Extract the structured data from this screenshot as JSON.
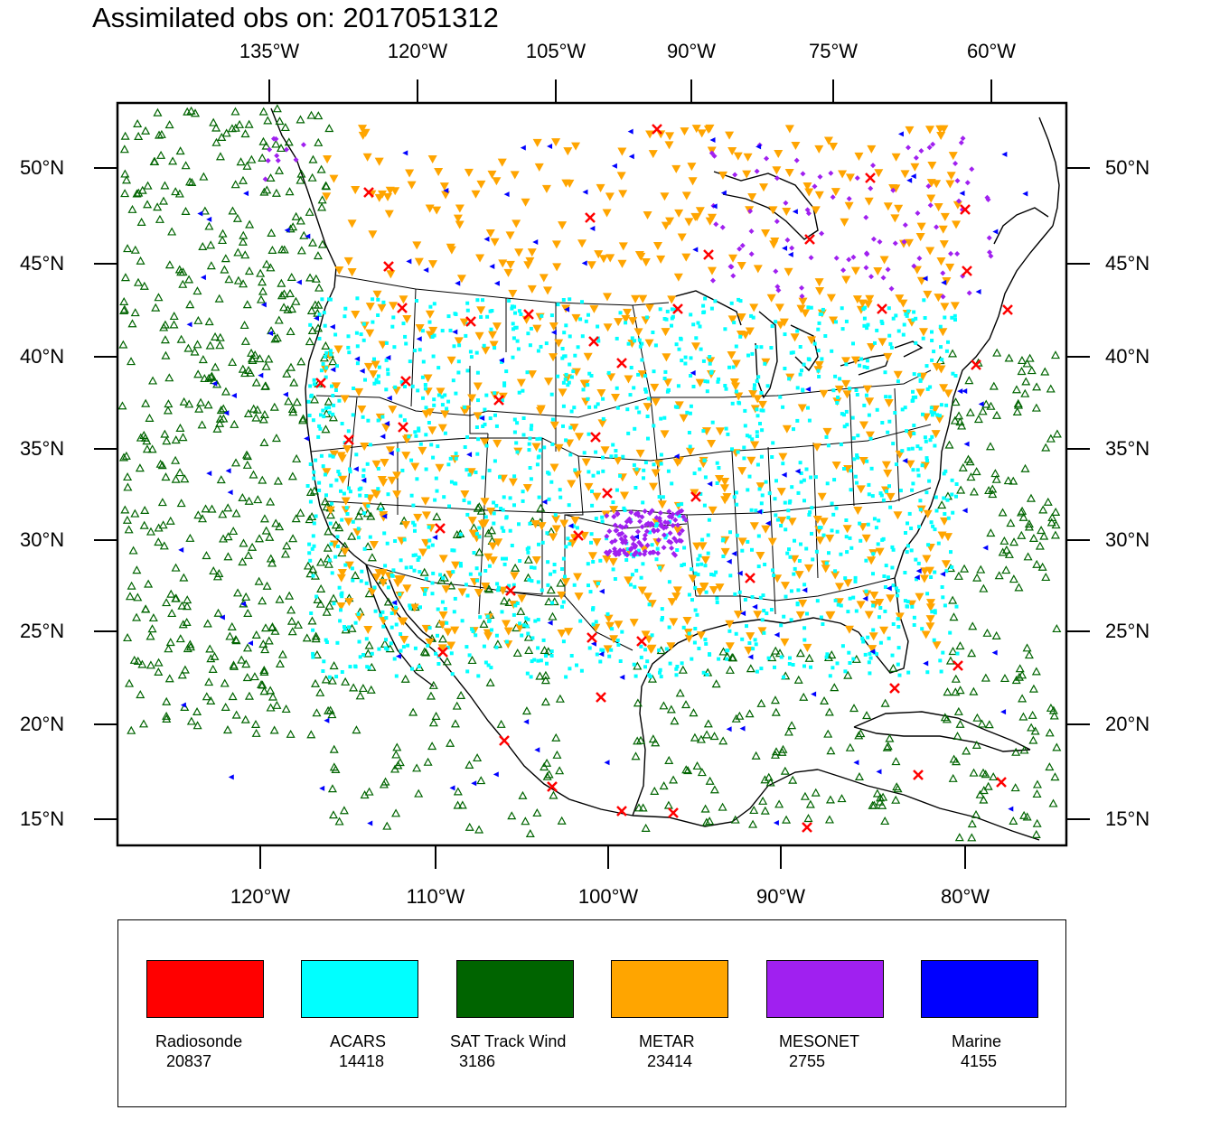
{
  "title": "Assimilated obs on: 2017051312",
  "map": {
    "top_lon_labels": [
      "135°W",
      "120°W",
      "105°W",
      "90°W",
      "75°W",
      "60°W"
    ],
    "bottom_lon_labels": [
      "120°W",
      "110°W",
      "100°W",
      "90°W",
      "80°W"
    ],
    "lat_labels": [
      "50°N",
      "45°N",
      "40°N",
      "35°N",
      "30°N",
      "25°N",
      "20°N",
      "15°N"
    ]
  },
  "legend": [
    {
      "name": "Radiosonde",
      "count": "20837",
      "color": "#ff0000"
    },
    {
      "name": "ACARS",
      "count": "14418",
      "color": "#00ffff"
    },
    {
      "name": "SAT Track Wind",
      "count": "3186",
      "color": "#006400"
    },
    {
      "name": "METAR",
      "count": "23414",
      "color": "#ffa500"
    },
    {
      "name": "MESONET",
      "count": "2755",
      "color": "#a020f0"
    },
    {
      "name": "Marine",
      "count": "4155",
      "color": "#0000ff"
    }
  ]
}
